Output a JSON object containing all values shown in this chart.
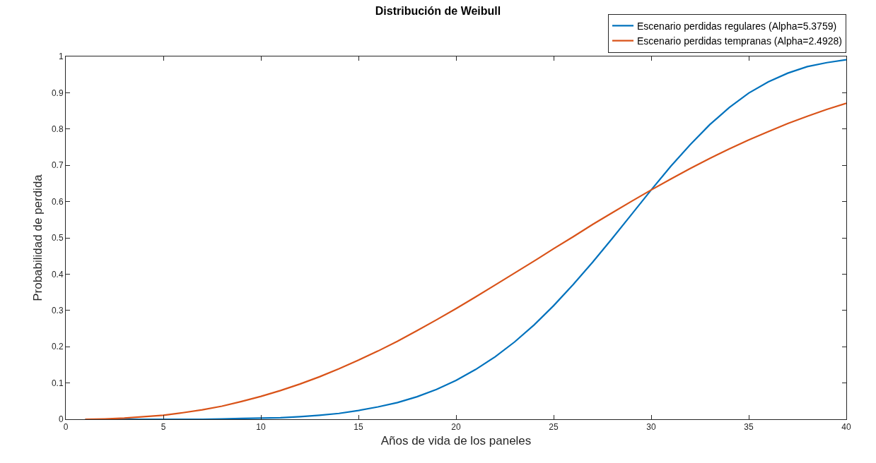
{
  "chart_data": {
    "type": "line",
    "title": "Distribución de Weibull",
    "xlabel": "Años de vida de los paneles",
    "ylabel": "Probabilidad de perdida",
    "x": [
      1,
      2,
      3,
      4,
      5,
      6,
      7,
      8,
      9,
      10,
      11,
      12,
      13,
      14,
      15,
      16,
      17,
      18,
      19,
      20,
      21,
      22,
      23,
      24,
      25,
      26,
      27,
      28,
      29,
      30,
      31,
      32,
      33,
      34,
      35,
      36,
      37,
      38,
      39,
      40
    ],
    "series": [
      {
        "name": "Escenario perdidas regulares (Alpha=5.3759)",
        "color": "#0072bd",
        "values": [
          0,
          0,
          0,
          0,
          0,
          0,
          0,
          0.001,
          0.002,
          0.003,
          0.004,
          0.007,
          0.011,
          0.016,
          0.024,
          0.034,
          0.046,
          0.062,
          0.082,
          0.107,
          0.137,
          0.172,
          0.213,
          0.26,
          0.313,
          0.371,
          0.433,
          0.498,
          0.565,
          0.632,
          0.697,
          0.757,
          0.812,
          0.859,
          0.899,
          0.93,
          0.954,
          0.972,
          0.983,
          0.991
        ]
      },
      {
        "name": "Escenario perdidas tempranas (Alpha=2.4928)",
        "color": "#d95319",
        "values": [
          0,
          0.001,
          0.003,
          0.007,
          0.011,
          0.018,
          0.026,
          0.036,
          0.049,
          0.063,
          0.079,
          0.097,
          0.117,
          0.139,
          0.163,
          0.188,
          0.215,
          0.244,
          0.274,
          0.305,
          0.337,
          0.37,
          0.403,
          0.436,
          0.47,
          0.503,
          0.537,
          0.569,
          0.601,
          0.632,
          0.662,
          0.691,
          0.719,
          0.745,
          0.77,
          0.793,
          0.815,
          0.835,
          0.854,
          0.871
        ]
      }
    ],
    "xlim": [
      0,
      40
    ],
    "xticks": [
      0,
      5,
      10,
      15,
      20,
      25,
      30,
      35,
      40
    ],
    "ylim": [
      0,
      1
    ],
    "yticks": [
      0,
      0.1,
      0.2,
      0.3,
      0.4,
      0.5,
      0.6,
      0.7,
      0.8,
      0.9,
      1
    ],
    "grid": false,
    "legend": "top right",
    "marker": "none",
    "line_style": "solid"
  }
}
